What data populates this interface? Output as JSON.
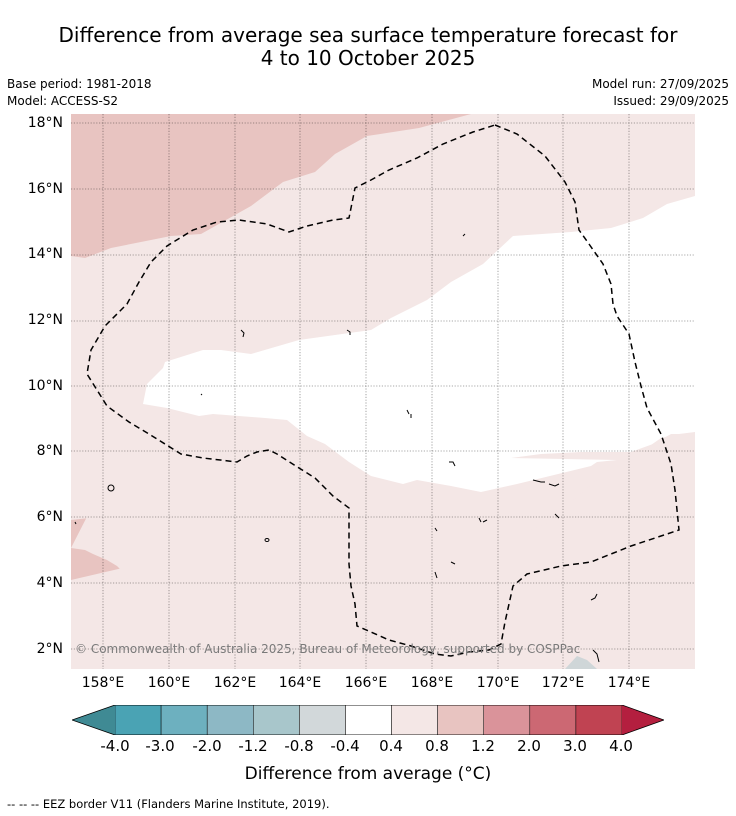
{
  "title": {
    "line1": "Difference from average sea surface temperature forecast for",
    "line2": "4 to 10 October 2025"
  },
  "meta": {
    "base_period": "Base period: 1981-2018",
    "model": "Model: ACCESS-S2",
    "model_run": "Model run: 27/09/2025",
    "issued": "Issued: 29/09/2025"
  },
  "map": {
    "lat_labels": [
      "18°N",
      "16°N",
      "14°N",
      "12°N",
      "10°N",
      "8°N",
      "6°N",
      "4°N",
      "2°N"
    ],
    "lon_labels": [
      "158°E",
      "160°E",
      "162°E",
      "164°E",
      "166°E",
      "168°E",
      "170°E",
      "172°E",
      "174°E"
    ],
    "copyright": "© Commonwealth of Australia 2025, Bureau of Meteorology, supported by COSPPac"
  },
  "colorbar": {
    "labels": [
      "-4.0",
      "-3.0",
      "-2.0",
      "-1.2",
      "-0.8",
      "-0.4",
      "0.4",
      "0.8",
      "1.2",
      "2.0",
      "3.0",
      "4.0"
    ],
    "colors": [
      "#4aa3b4",
      "#6db0bf",
      "#8db8c5",
      "#a8c6cb",
      "#d2d8da",
      "#ffffff",
      "#f4e7e6",
      "#e8c4c1",
      "#da939a",
      "#cc6873",
      "#c04352"
    ],
    "under_color": "#3f8a94",
    "over_color": "#b41f3f",
    "title": "Difference from average (°C)"
  },
  "footnote": "--  --  -- EEZ border V11 (Flanders Marine Institute, 2019)."
}
